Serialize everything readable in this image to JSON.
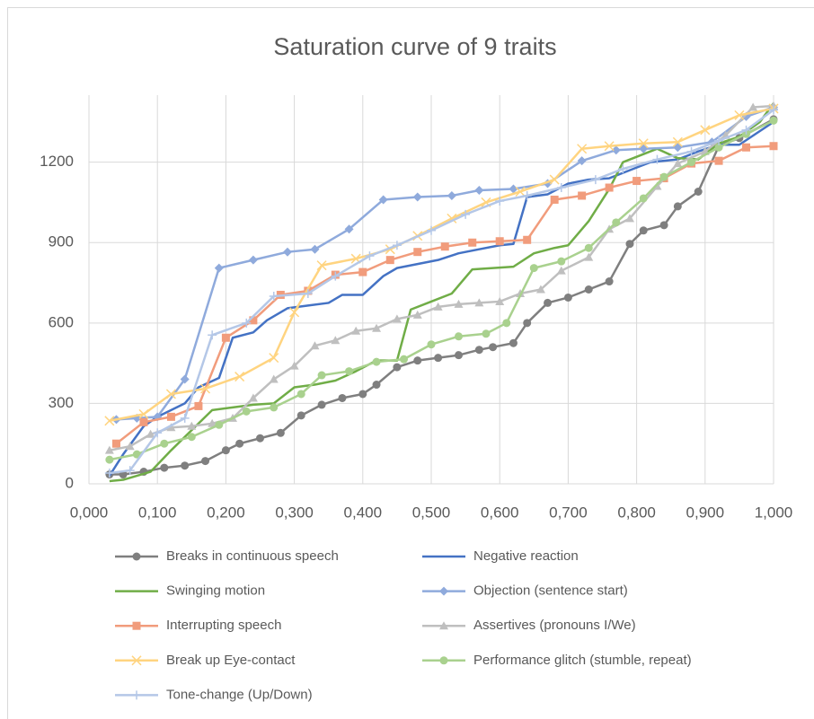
{
  "chart_data": {
    "type": "line",
    "title": "Saturation curve of 9 traits",
    "xlim": [
      0,
      1
    ],
    "ylim": [
      0,
      1450
    ],
    "xticks": [
      {
        "value": 0,
        "label": "0,000"
      },
      {
        "value": 0.1,
        "label": "0,100"
      },
      {
        "value": 0.2,
        "label": "0,200"
      },
      {
        "value": 0.3,
        "label": "0,300"
      },
      {
        "value": 0.4,
        "label": "0,400"
      },
      {
        "value": 0.5,
        "label": "0,500"
      },
      {
        "value": 0.6,
        "label": "0,600"
      },
      {
        "value": 0.7,
        "label": "0,700"
      },
      {
        "value": 0.8,
        "label": "0,800"
      },
      {
        "value": 0.9,
        "label": "0,900"
      },
      {
        "value": 1,
        "label": "1,000"
      }
    ],
    "yticks": [
      0,
      300,
      600,
      900,
      1200
    ],
    "grid": "both",
    "legend": "bottom",
    "series": [
      {
        "name": "Breaks in continuous speech",
        "color": "#7f7f7f",
        "marker": "circle",
        "x": [
          0.03,
          0.05,
          0.08,
          0.11,
          0.14,
          0.17,
          0.2,
          0.22,
          0.25,
          0.28,
          0.31,
          0.34,
          0.37,
          0.4,
          0.42,
          0.45,
          0.48,
          0.51,
          0.54,
          0.57,
          0.59,
          0.62,
          0.64,
          0.67,
          0.7,
          0.73,
          0.76,
          0.79,
          0.81,
          0.84,
          0.86,
          0.89,
          0.92,
          0.95,
          1.0
        ],
        "values": [
          35,
          35,
          45,
          60,
          68,
          85,
          125,
          150,
          170,
          190,
          255,
          295,
          320,
          335,
          370,
          435,
          460,
          470,
          480,
          500,
          510,
          525,
          600,
          675,
          695,
          725,
          755,
          895,
          945,
          965,
          1035,
          1090,
          1260,
          1290,
          1360
        ]
      },
      {
        "name": "Negative reaction",
        "color": "#4472c4",
        "marker": "none",
        "x": [
          0.03,
          0.05,
          0.08,
          0.1,
          0.14,
          0.16,
          0.19,
          0.21,
          0.24,
          0.26,
          0.29,
          0.32,
          0.35,
          0.37,
          0.4,
          0.43,
          0.45,
          0.48,
          0.51,
          0.54,
          0.57,
          0.6,
          0.62,
          0.64,
          0.67,
          0.7,
          0.73,
          0.76,
          0.79,
          0.82,
          0.86,
          0.89,
          0.92,
          0.95,
          1.0
        ],
        "values": [
          30,
          110,
          215,
          250,
          300,
          360,
          395,
          545,
          565,
          610,
          655,
          665,
          675,
          705,
          705,
          775,
          805,
          820,
          835,
          860,
          875,
          890,
          895,
          1070,
          1080,
          1120,
          1135,
          1140,
          1170,
          1200,
          1210,
          1240,
          1265,
          1265,
          1350
        ]
      },
      {
        "name": "Swinging motion",
        "color": "#70ad47",
        "marker": "none",
        "x": [
          0.03,
          0.05,
          0.09,
          0.12,
          0.15,
          0.18,
          0.21,
          0.24,
          0.27,
          0.3,
          0.33,
          0.36,
          0.39,
          0.42,
          0.45,
          0.47,
          0.5,
          0.53,
          0.56,
          0.59,
          0.62,
          0.65,
          0.68,
          0.7,
          0.73,
          0.76,
          0.78,
          0.81,
          0.83,
          0.86,
          0.89,
          0.92,
          0.95,
          0.98,
          1.0
        ],
        "values": [
          10,
          15,
          45,
          125,
          200,
          275,
          285,
          295,
          300,
          360,
          370,
          385,
          420,
          460,
          460,
          650,
          680,
          710,
          800,
          805,
          810,
          860,
          880,
          890,
          980,
          1100,
          1200,
          1230,
          1250,
          1215,
          1210,
          1270,
          1295,
          1350,
          1420
        ]
      },
      {
        "name": "Objection (sentence start)",
        "color": "#8faadc",
        "marker": "diamond",
        "x": [
          0.04,
          0.07,
          0.1,
          0.14,
          0.19,
          0.24,
          0.29,
          0.33,
          0.38,
          0.43,
          0.48,
          0.53,
          0.57,
          0.62,
          0.67,
          0.72,
          0.77,
          0.81,
          0.86,
          0.91,
          0.96,
          1.0
        ],
        "values": [
          240,
          245,
          250,
          390,
          805,
          835,
          865,
          875,
          950,
          1060,
          1070,
          1075,
          1095,
          1100,
          1120,
          1205,
          1245,
          1250,
          1255,
          1275,
          1370,
          1405
        ]
      },
      {
        "name": "Interrupting speech",
        "color": "#f19c7c",
        "marker": "square",
        "x": [
          0.04,
          0.08,
          0.12,
          0.16,
          0.2,
          0.24,
          0.28,
          0.32,
          0.36,
          0.4,
          0.44,
          0.48,
          0.52,
          0.56,
          0.6,
          0.64,
          0.68,
          0.72,
          0.76,
          0.8,
          0.84,
          0.88,
          0.92,
          0.96,
          1.0
        ],
        "values": [
          150,
          230,
          250,
          290,
          545,
          610,
          705,
          720,
          780,
          790,
          835,
          865,
          885,
          900,
          905,
          910,
          1060,
          1075,
          1105,
          1130,
          1140,
          1195,
          1205,
          1255,
          1260
        ]
      },
      {
        "name": "Assertives (pronouns I/We)",
        "color": "#bfbfbf",
        "marker": "triangle",
        "x": [
          0.03,
          0.06,
          0.09,
          0.12,
          0.15,
          0.18,
          0.21,
          0.24,
          0.27,
          0.3,
          0.33,
          0.36,
          0.39,
          0.42,
          0.45,
          0.48,
          0.51,
          0.54,
          0.57,
          0.6,
          0.63,
          0.66,
          0.69,
          0.73,
          0.76,
          0.79,
          0.83,
          0.86,
          0.9,
          0.93,
          0.97,
          1.0
        ],
        "values": [
          125,
          140,
          185,
          210,
          215,
          225,
          245,
          320,
          390,
          440,
          515,
          535,
          570,
          580,
          615,
          630,
          660,
          670,
          675,
          680,
          710,
          725,
          795,
          845,
          950,
          990,
          1110,
          1195,
          1240,
          1300,
          1405,
          1410
        ]
      },
      {
        "name": "Break up Eye-contact",
        "color": "#ffd480",
        "marker": "x",
        "x": [
          0.03,
          0.08,
          0.12,
          0.17,
          0.22,
          0.27,
          0.3,
          0.34,
          0.39,
          0.44,
          0.48,
          0.53,
          0.58,
          0.63,
          0.68,
          0.72,
          0.76,
          0.81,
          0.86,
          0.9,
          0.95,
          1.0
        ],
        "values": [
          235,
          260,
          335,
          355,
          400,
          470,
          640,
          815,
          840,
          875,
          925,
          990,
          1050,
          1090,
          1135,
          1250,
          1260,
          1270,
          1275,
          1320,
          1375,
          1400
        ]
      },
      {
        "name": "Performance glitch (stumble, repeat)",
        "color": "#a9d18e",
        "marker": "circle",
        "x": [
          0.03,
          0.07,
          0.11,
          0.15,
          0.19,
          0.23,
          0.27,
          0.31,
          0.34,
          0.38,
          0.42,
          0.46,
          0.5,
          0.54,
          0.58,
          0.61,
          0.65,
          0.69,
          0.73,
          0.77,
          0.81,
          0.84,
          0.88,
          0.92,
          0.96,
          1.0
        ],
        "values": [
          90,
          110,
          150,
          175,
          220,
          270,
          285,
          335,
          405,
          420,
          455,
          465,
          520,
          550,
          560,
          600,
          805,
          830,
          880,
          975,
          1065,
          1145,
          1200,
          1255,
          1305,
          1355
        ]
      },
      {
        "name": "Tone-change (Up/Down)",
        "color": "#b4c7e7",
        "marker": "plus",
        "x": [
          0.03,
          0.06,
          0.1,
          0.14,
          0.18,
          0.23,
          0.27,
          0.32,
          0.36,
          0.41,
          0.45,
          0.5,
          0.55,
          0.6,
          0.64,
          0.69,
          0.74,
          0.78,
          0.83,
          0.88,
          0.92,
          0.96,
          1.0
        ],
        "values": [
          40,
          50,
          190,
          245,
          555,
          600,
          700,
          710,
          775,
          850,
          890,
          945,
          1005,
          1055,
          1075,
          1105,
          1135,
          1175,
          1210,
          1240,
          1280,
          1320,
          1395
        ]
      }
    ]
  }
}
